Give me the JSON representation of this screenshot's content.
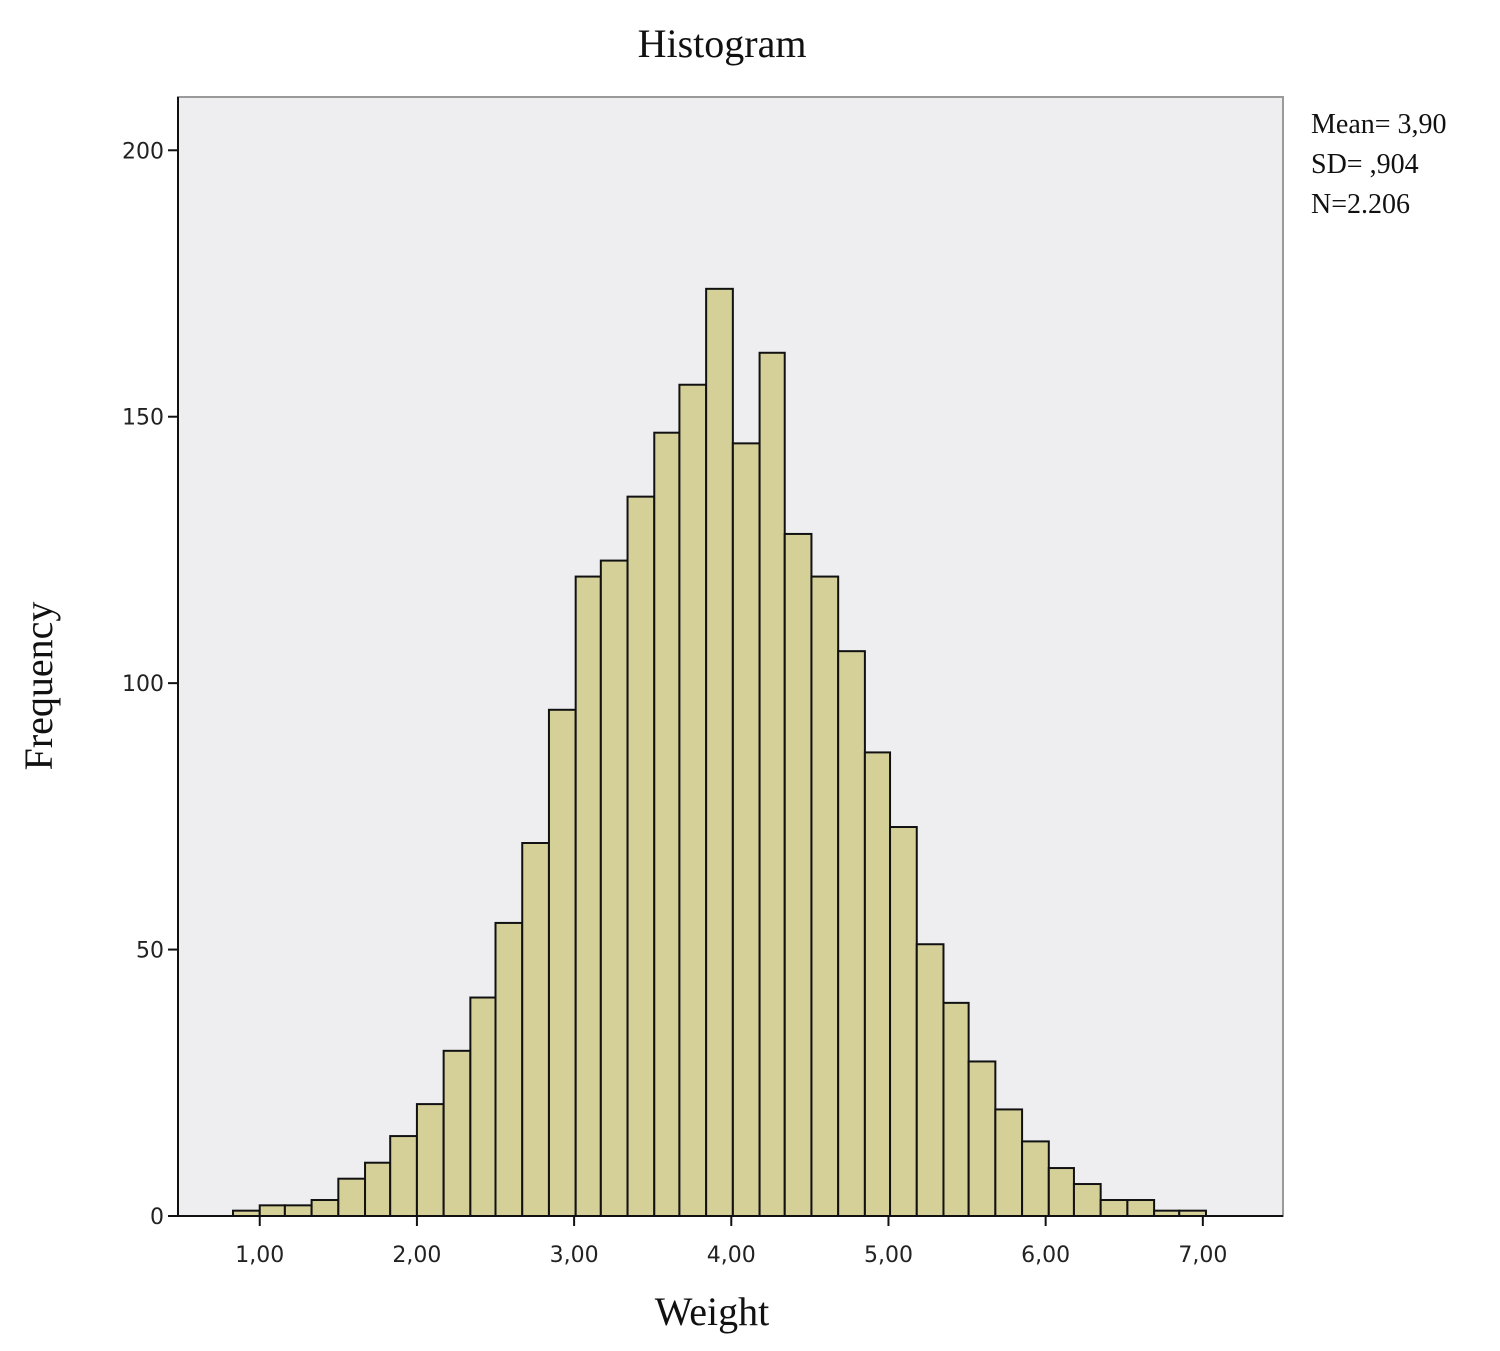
{
  "chart_data": {
    "type": "histogram",
    "title": "Histogram",
    "x_label": "Weight",
    "y_label": "Frequency",
    "bins": [
      0.83,
      1.0,
      1.16,
      1.33,
      1.5,
      1.67,
      1.83,
      2.0,
      2.17,
      2.34,
      2.5,
      2.67,
      2.84,
      3.01,
      3.17,
      3.34,
      3.51,
      3.67,
      3.84,
      4.01,
      4.18,
      4.34,
      4.51,
      4.68,
      4.85,
      5.01,
      5.18,
      5.35,
      5.51,
      5.68,
      5.85,
      6.02,
      6.18,
      6.35,
      6.52,
      6.69,
      6.85,
      7.02
    ],
    "counts": [
      1,
      2,
      2,
      3,
      7,
      10,
      15,
      21,
      31,
      41,
      55,
      70,
      95,
      120,
      123,
      135,
      147,
      156,
      174,
      145,
      162,
      128,
      120,
      106,
      87,
      73,
      51,
      40,
      29,
      20,
      14,
      9,
      6,
      3,
      3,
      1,
      1
    ],
    "color": "#d5cf98",
    "xlim": [
      0.48,
      7.51
    ],
    "xticks": [
      {
        "value": 1,
        "label": "1,00"
      },
      {
        "value": 2,
        "label": "2,00"
      },
      {
        "value": 3,
        "label": "3,00"
      },
      {
        "value": 4,
        "label": "4,00"
      },
      {
        "value": 5,
        "label": "5,00"
      },
      {
        "value": 6,
        "label": "6,00"
      },
      {
        "value": 7,
        "label": "7,00"
      }
    ],
    "ylim": [
      0,
      210
    ],
    "yticks": [
      0,
      50,
      100,
      150,
      200
    ],
    "annotations": [
      "Mean= 3,90",
      "SD= ,904",
      "N=2.206"
    ]
  }
}
